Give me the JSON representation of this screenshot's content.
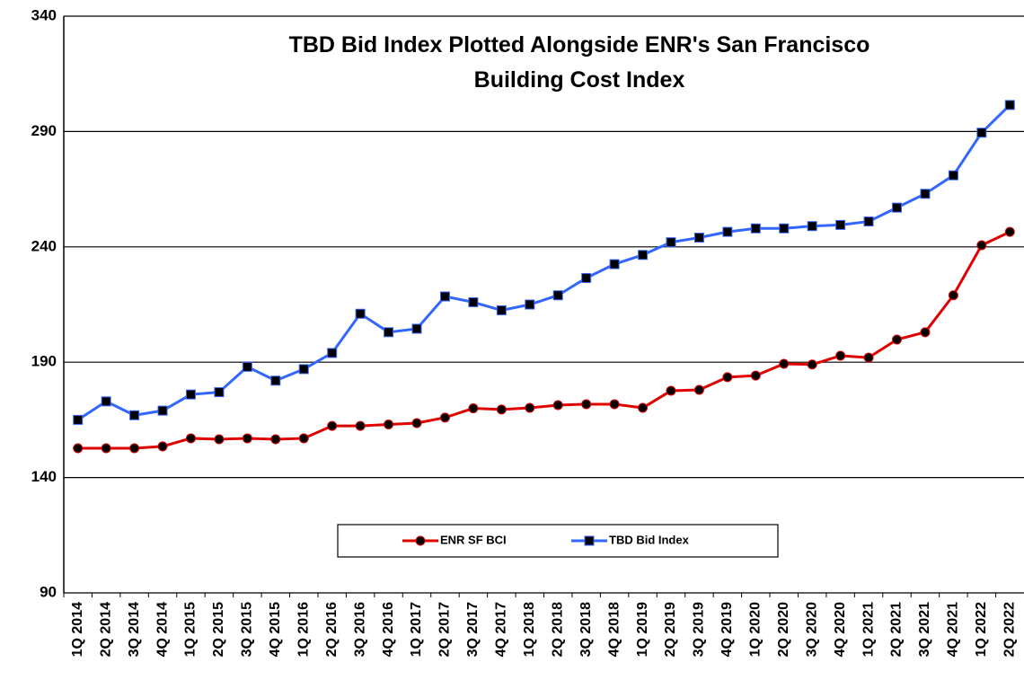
{
  "chart_data": {
    "type": "line",
    "title": [
      "TBD Bid Index Plotted Alongside ENR's San Francisco",
      "Building Cost Index"
    ],
    "categories": [
      "1Q 2014",
      "2Q 2014",
      "3Q 2014",
      "4Q 2014",
      "1Q 2015",
      "2Q 2015",
      "3Q 2015",
      "4Q 2015",
      "1Q 2016",
      "2Q 2016",
      "3Q 2016",
      "4Q 2016",
      "1Q 2017",
      "2Q 2017",
      "3Q 2017",
      "4Q 2017",
      "1Q 2018",
      "2Q 2018",
      "3Q 2018",
      "4Q 2018",
      "1Q 2019",
      "2Q 2019",
      "3Q 2019",
      "4Q 2019",
      "1Q 2020",
      "2Q 2020",
      "3Q 2020",
      "4Q 2020",
      "1Q 2021",
      "2Q 2021",
      "3Q 2021",
      "4Q 2021",
      "1Q 2022",
      "2Q 2022"
    ],
    "series": [
      {
        "name": "ENR SF BCI",
        "color": "#e00000",
        "marker": "circle",
        "values": [
          152.7,
          152.7,
          152.7,
          153.5,
          157,
          156.6,
          157,
          156.6,
          157,
          162.4,
          162.4,
          163,
          163.6,
          166,
          170,
          169.5,
          170.2,
          171.4,
          171.8,
          171.8,
          170.2,
          177.6,
          178,
          183.5,
          184.2,
          189.3,
          189,
          192.8,
          192,
          199.8,
          203,
          219,
          240.7,
          246.5
        ]
      },
      {
        "name": "TBD Bid Index",
        "color": "#3366ff",
        "marker": "square",
        "values": [
          165,
          173,
          167,
          169,
          176,
          177,
          188,
          182,
          187,
          194,
          211,
          203,
          204.5,
          218.5,
          216,
          212.5,
          215,
          219,
          226.5,
          232.5,
          236.5,
          242,
          244,
          246.5,
          248,
          248,
          249,
          249.5,
          251,
          257,
          263,
          271,
          289.5,
          301.5
        ]
      }
    ],
    "ylim": [
      90,
      340
    ],
    "yticks": [
      90,
      140,
      190,
      240,
      290,
      340
    ],
    "grid": true,
    "legend": "bottom"
  }
}
